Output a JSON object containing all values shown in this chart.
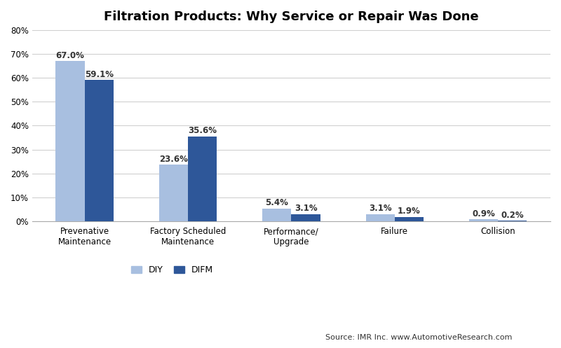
{
  "title": "Filtration Products: Why Service or Repair Was Done",
  "categories": [
    "Prevenative\nMaintenance",
    "Factory Scheduled\nMaintenance",
    "Performance/\nUpgrade",
    "Failure",
    "Collision"
  ],
  "diy_values": [
    67.0,
    23.6,
    5.4,
    3.1,
    0.9
  ],
  "difm_values": [
    59.1,
    35.6,
    3.1,
    1.9,
    0.2
  ],
  "diy_color": "#a8bfe0",
  "difm_color": "#2e5799",
  "ylim": [
    0,
    80
  ],
  "yticks": [
    0,
    10,
    20,
    30,
    40,
    50,
    60,
    70,
    80
  ],
  "bar_width": 0.28,
  "source_text": "Source: IMR Inc. www.AutomotiveResearch.com",
  "legend_labels": [
    "DIY",
    "DIFM"
  ],
  "title_fontsize": 13,
  "label_fontsize": 8.5,
  "tick_fontsize": 8.5,
  "legend_fontsize": 9,
  "source_fontsize": 8,
  "background_color": "#ffffff",
  "grid_color": "#d0d0d0"
}
